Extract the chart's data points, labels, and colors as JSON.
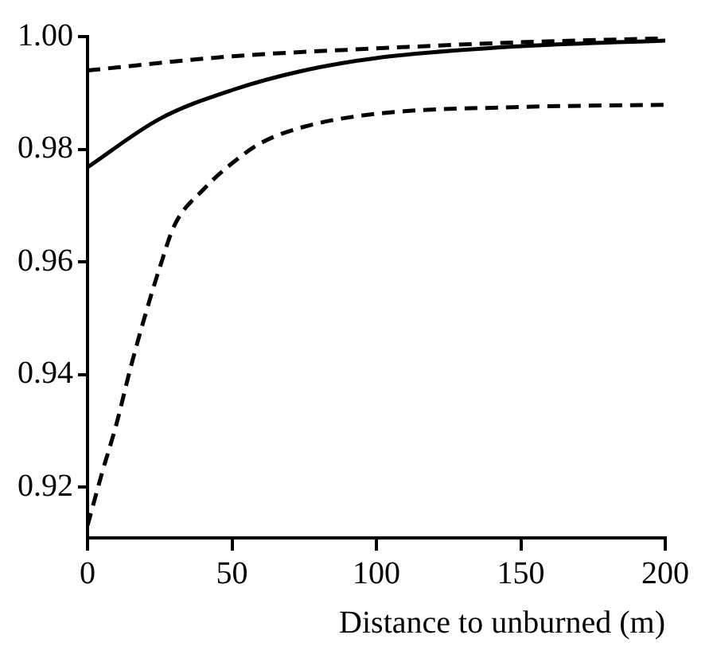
{
  "chart_data": {
    "type": "line",
    "xlabel": "Distance to unburned (m)",
    "xlim": [
      0,
      200
    ],
    "xticks": [
      0,
      50,
      100,
      150,
      200
    ],
    "ylim": [
      0.911,
      1.0
    ],
    "yticks": [
      {
        "value": 0.92,
        "label": "0.92"
      },
      {
        "value": 0.94,
        "label": "0.94"
      },
      {
        "value": 0.96,
        "label": "0.96"
      },
      {
        "value": 0.98,
        "label": "0.98"
      },
      {
        "value": 1.0,
        "label": "1.00"
      }
    ],
    "grid": false,
    "legend": false,
    "marker": "none",
    "series": [
      {
        "color": "#000000",
        "line_style": "solid",
        "x": [
          0,
          25,
          50,
          75,
          100,
          150,
          200
        ],
        "values": [
          0.9768,
          0.9854,
          0.9905,
          0.994,
          0.9962,
          0.9983,
          0.9993
        ]
      },
      {
        "color": "#000000",
        "line_style": "dashed",
        "x": [
          0,
          50,
          100,
          150,
          200
        ],
        "values": [
          0.994,
          0.9965,
          0.9979,
          0.999,
          0.9997
        ]
      },
      {
        "color": "#000000",
        "line_style": "dashed",
        "x": [
          0,
          5,
          10,
          15,
          20,
          25,
          30,
          40,
          50,
          60,
          75,
          100,
          150,
          200
        ],
        "values": [
          0.9132,
          0.9225,
          0.9312,
          0.9414,
          0.9506,
          0.959,
          0.9664,
          0.9728,
          0.9775,
          0.9811,
          0.984,
          0.9863,
          0.9875,
          0.9879
        ]
      }
    ]
  }
}
